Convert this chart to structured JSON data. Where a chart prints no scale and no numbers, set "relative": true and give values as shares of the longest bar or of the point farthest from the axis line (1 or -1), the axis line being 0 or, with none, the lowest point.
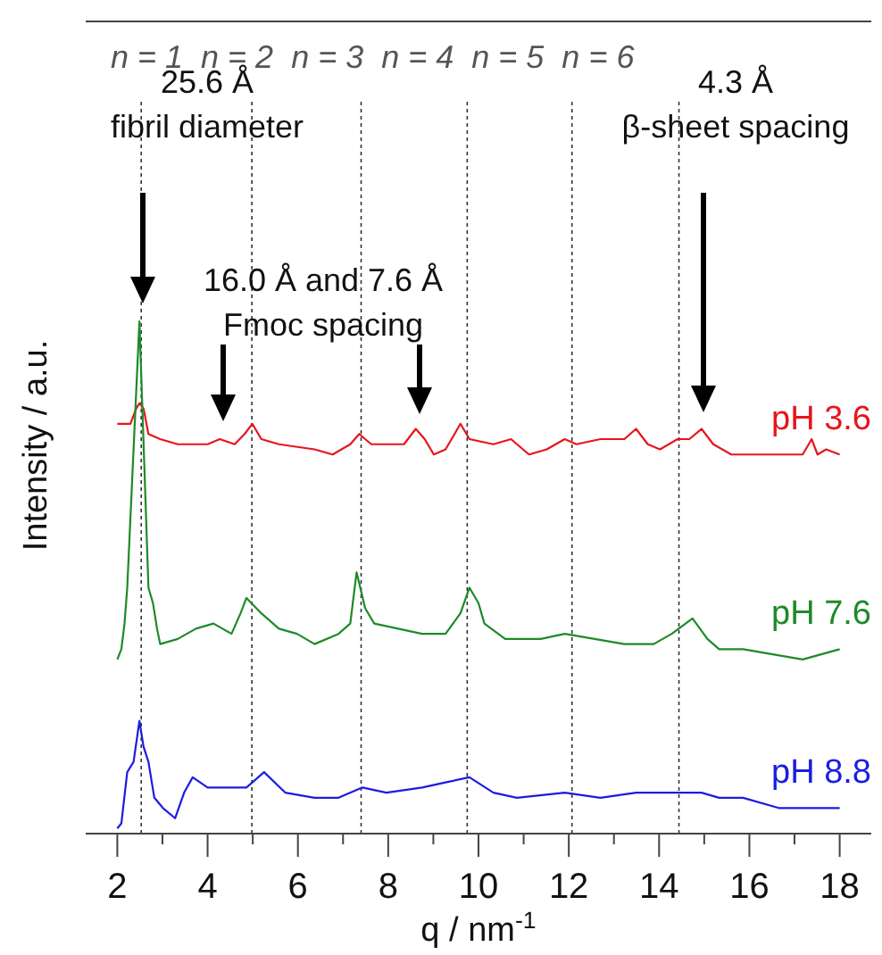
{
  "chart_data": {
    "type": "line",
    "relative": true,
    "xlabel": "q / nm$^{-1}$",
    "ylabel": "Intensity / a.u.",
    "xlim": [
      1.3,
      18.7
    ],
    "xticks": [
      2,
      {
        "value": 3,
        "label": null
      },
      4,
      {
        "value": 5,
        "label": null
      },
      6,
      {
        "value": 7,
        "label": null
      },
      8,
      {
        "value": 9,
        "label": null
      },
      10,
      {
        "value": 11,
        "label": null
      },
      12,
      {
        "value": 13,
        "label": null
      },
      14,
      {
        "value": 15,
        "label": null
      },
      16,
      {
        "value": 17,
        "label": null
      },
      18
    ],
    "legend": false,
    "grid": false,
    "series": [
      {
        "name": "pH 3.6",
        "color": "#e8141b",
        "x": [
          2.0,
          2.29,
          2.42,
          2.49,
          2.58,
          2.69,
          2.95,
          3.34,
          4.0,
          4.27,
          4.6,
          4.82,
          4.99,
          5.19,
          5.58,
          6.37,
          6.77,
          7.16,
          7.36,
          7.49,
          7.63,
          7.96,
          8.35,
          8.61,
          8.81,
          9.01,
          9.27,
          9.47,
          9.6,
          9.8,
          10.33,
          10.72,
          11.12,
          11.51,
          11.91,
          12.17,
          12.7,
          13.23,
          13.49,
          13.75,
          14.02,
          14.41,
          14.67,
          14.94,
          15.2,
          15.6,
          16.12,
          16.65,
          17.18,
          17.38,
          17.51,
          17.7,
          18.0
        ],
        "values": [
          0.8,
          0.8,
          0.83,
          0.84,
          0.83,
          0.78,
          0.77,
          0.76,
          0.76,
          0.77,
          0.76,
          0.78,
          0.8,
          0.77,
          0.76,
          0.75,
          0.74,
          0.76,
          0.78,
          0.77,
          0.76,
          0.76,
          0.76,
          0.79,
          0.77,
          0.74,
          0.75,
          0.78,
          0.8,
          0.77,
          0.76,
          0.77,
          0.74,
          0.75,
          0.77,
          0.76,
          0.77,
          0.77,
          0.79,
          0.76,
          0.75,
          0.77,
          0.77,
          0.79,
          0.76,
          0.74,
          0.74,
          0.74,
          0.74,
          0.77,
          0.74,
          0.75,
          0.74
        ]
      },
      {
        "name": "pH 7.6",
        "color": "#1e8a28",
        "x": [
          2.0,
          2.09,
          2.16,
          2.22,
          2.49,
          2.69,
          2.79,
          2.88,
          2.95,
          3.34,
          3.74,
          4.13,
          4.53,
          4.73,
          4.86,
          5.19,
          5.58,
          5.98,
          6.37,
          6.9,
          7.16,
          7.3,
          7.49,
          7.69,
          8.22,
          8.75,
          9.27,
          9.6,
          9.8,
          10.0,
          10.13,
          10.59,
          11.38,
          11.91,
          12.57,
          13.23,
          13.88,
          14.28,
          14.74,
          15.07,
          15.33,
          15.86,
          16.52,
          17.18,
          18.0
        ],
        "values": [
          0.34,
          0.36,
          0.41,
          0.48,
          1.0,
          0.48,
          0.45,
          0.4,
          0.37,
          0.38,
          0.4,
          0.41,
          0.39,
          0.43,
          0.46,
          0.43,
          0.4,
          0.39,
          0.37,
          0.39,
          0.41,
          0.51,
          0.44,
          0.41,
          0.4,
          0.39,
          0.39,
          0.43,
          0.48,
          0.45,
          0.41,
          0.38,
          0.38,
          0.39,
          0.38,
          0.37,
          0.37,
          0.39,
          0.42,
          0.38,
          0.36,
          0.36,
          0.35,
          0.34,
          0.36
        ]
      },
      {
        "name": "pH 8.8",
        "color": "#1c1ce0",
        "x": [
          2.0,
          2.09,
          2.22,
          2.36,
          2.49,
          2.58,
          2.69,
          2.82,
          3.01,
          3.28,
          3.48,
          3.67,
          4.0,
          4.53,
          4.86,
          5.25,
          5.72,
          6.37,
          6.9,
          7.43,
          7.96,
          8.75,
          9.27,
          9.8,
          10.33,
          10.85,
          11.91,
          12.7,
          13.49,
          14.41,
          14.94,
          15.33,
          15.86,
          16.65,
          17.44,
          18.0
        ],
        "values": [
          0.01,
          0.02,
          0.12,
          0.14,
          0.22,
          0.17,
          0.14,
          0.07,
          0.05,
          0.03,
          0.08,
          0.11,
          0.09,
          0.09,
          0.09,
          0.12,
          0.08,
          0.07,
          0.07,
          0.09,
          0.08,
          0.09,
          0.1,
          0.11,
          0.08,
          0.07,
          0.08,
          0.07,
          0.08,
          0.08,
          0.08,
          0.07,
          0.07,
          0.05,
          0.05,
          0.05
        ]
      }
    ],
    "ref_lines": [
      {
        "axis": "x",
        "value": 2.53,
        "color": "#333333",
        "line_style": "dotted"
      },
      {
        "axis": "x",
        "value": 4.98,
        "color": "#333333",
        "line_style": "dotted"
      },
      {
        "axis": "x",
        "value": 7.4,
        "color": "#333333",
        "line_style": "dotted"
      },
      {
        "axis": "x",
        "value": 9.75,
        "color": "#333333",
        "line_style": "dotted"
      },
      {
        "axis": "x",
        "value": 12.07,
        "color": "#333333",
        "line_style": "dotted"
      },
      {
        "axis": "x",
        "value": 14.44,
        "color": "#333333",
        "line_style": "dotted"
      }
    ],
    "annotations": [
      "n = 1  n = 2  n = 3  n = 4  n = 5  n = 6",
      "25.6 Å\nfibril diameter",
      "16.0 Å and 7.6 Å\nFmoc spacing",
      "4.3 Å\nβ-sheet spacing"
    ]
  }
}
